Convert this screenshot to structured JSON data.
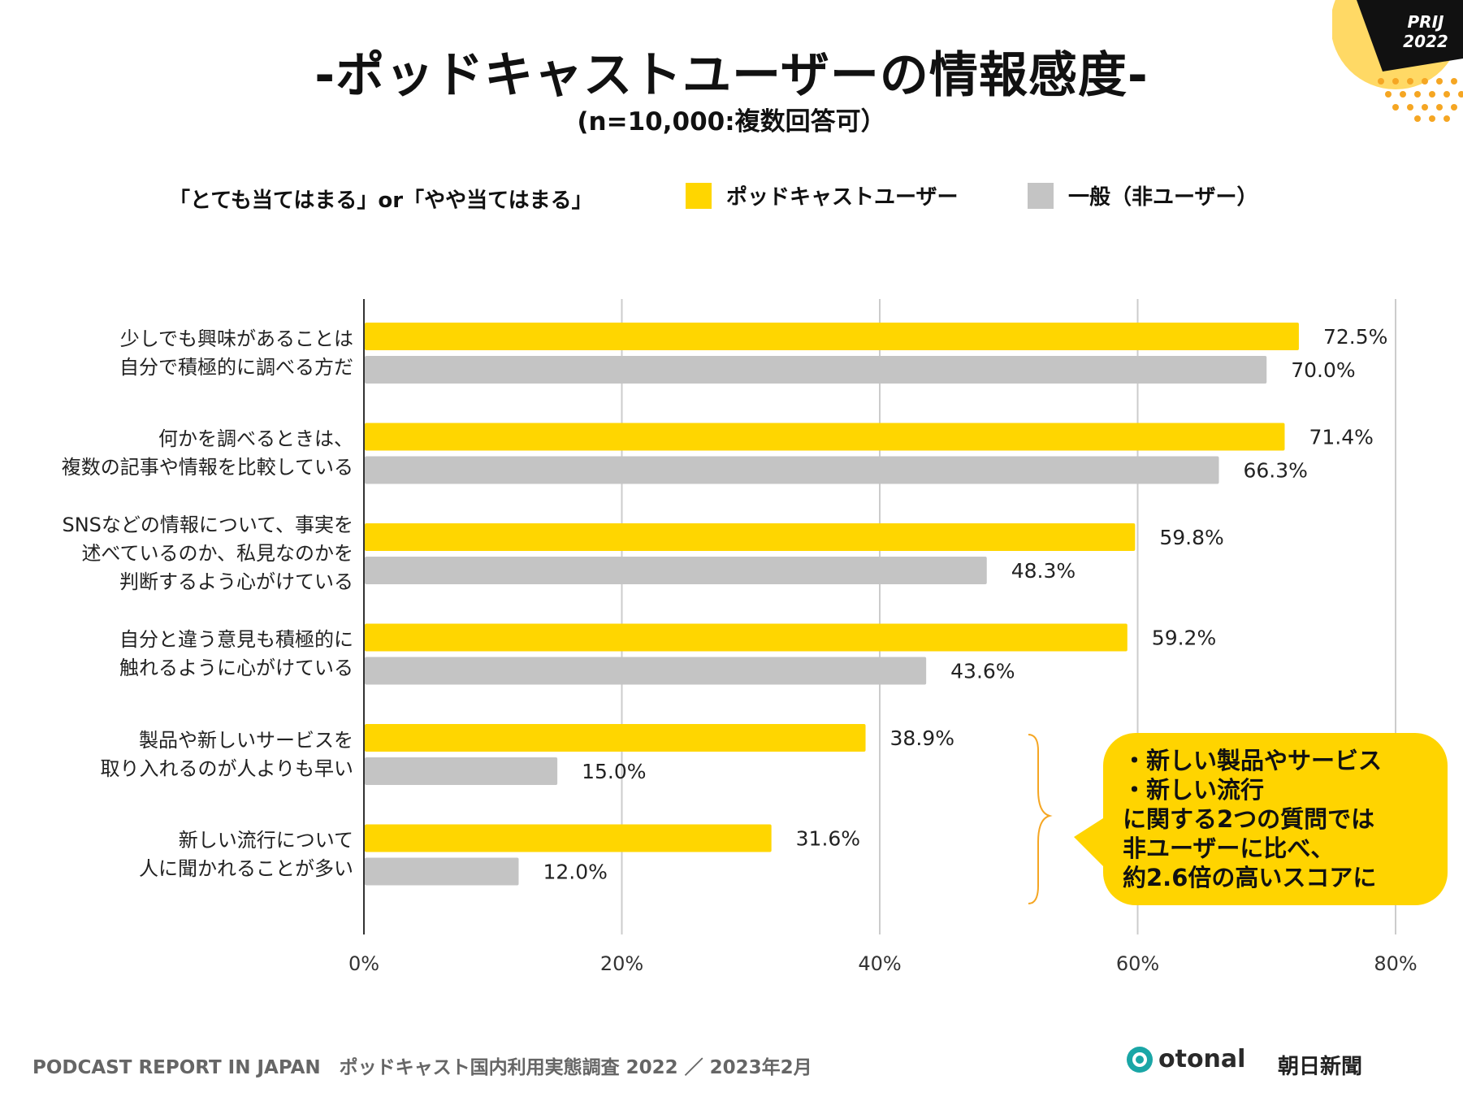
{
  "header": {
    "title": "-ポッドキャストユーザーの情報感度-",
    "subtitle": "(n=10,000:複数回答可）",
    "badge_line1": "PRIJ",
    "badge_line2": "2022"
  },
  "legend": {
    "caption": "「とても当てはまる」or「やや当てはまる」",
    "series1": "ポッドキャストユーザー",
    "series2": "一般（非ユーザー）"
  },
  "chart_data": {
    "type": "bar",
    "orientation": "horizontal",
    "title": "-ポッドキャストユーザーの情報感度-",
    "subtitle": "(n=10,000:複数回答可）",
    "categories": [
      [
        "少しでも興味があることは",
        "自分で積極的に調べる方だ"
      ],
      [
        "何かを調べるときは、",
        "複数の記事や情報を比較している"
      ],
      [
        "SNSなどの情報について、事実を",
        "述べているのか、私見なのかを",
        "判断するよう心がけている"
      ],
      [
        "自分と違う意見も積極的に",
        "触れるように心がけている"
      ],
      [
        "製品や新しいサービスを",
        "取り入れるのが人よりも早い"
      ],
      [
        "新しい流行について",
        "人に聞かれることが多い"
      ]
    ],
    "series": [
      {
        "name": "ポッドキャストユーザー",
        "color": "#ffd600",
        "values": [
          72.5,
          71.4,
          59.8,
          59.2,
          38.9,
          31.6
        ],
        "labels": [
          "72.5%",
          "71.4%",
          "59.8%",
          "59.2%",
          "38.9%",
          "31.6%"
        ]
      },
      {
        "name": "一般（非ユーザー）",
        "color": "#c4c4c4",
        "values": [
          70.0,
          66.3,
          48.3,
          43.6,
          15.0,
          12.0
        ],
        "labels": [
          "70.0%",
          "66.3%",
          "48.3%",
          "43.6%",
          "15.0%",
          "12.0%"
        ]
      }
    ],
    "xlim": [
      0,
      80
    ],
    "ticks": [
      0,
      20,
      40,
      60,
      80
    ],
    "tick_labels": [
      "0%",
      "20%",
      "40%",
      "60%",
      "80%"
    ],
    "grid": true
  },
  "callout": {
    "lines": [
      "・新しい製品やサービス",
      "・新しい流行",
      "に関する2つの質問では",
      "非ユーザーに比べ、",
      "約2.6倍の高いスコアに"
    ]
  },
  "footer": {
    "text": "PODCAST REPORT IN JAPAN　ポッドキャスト国内利用実態調査 2022 ／ 2023年2月",
    "otonal": "otonal",
    "asahi": "朝日新聞"
  },
  "colors": {
    "accent_yellow": "#ffd600",
    "non_user_gray": "#c4c4c4",
    "badge_black": "#111111",
    "badge_orange": "#f5a623"
  }
}
